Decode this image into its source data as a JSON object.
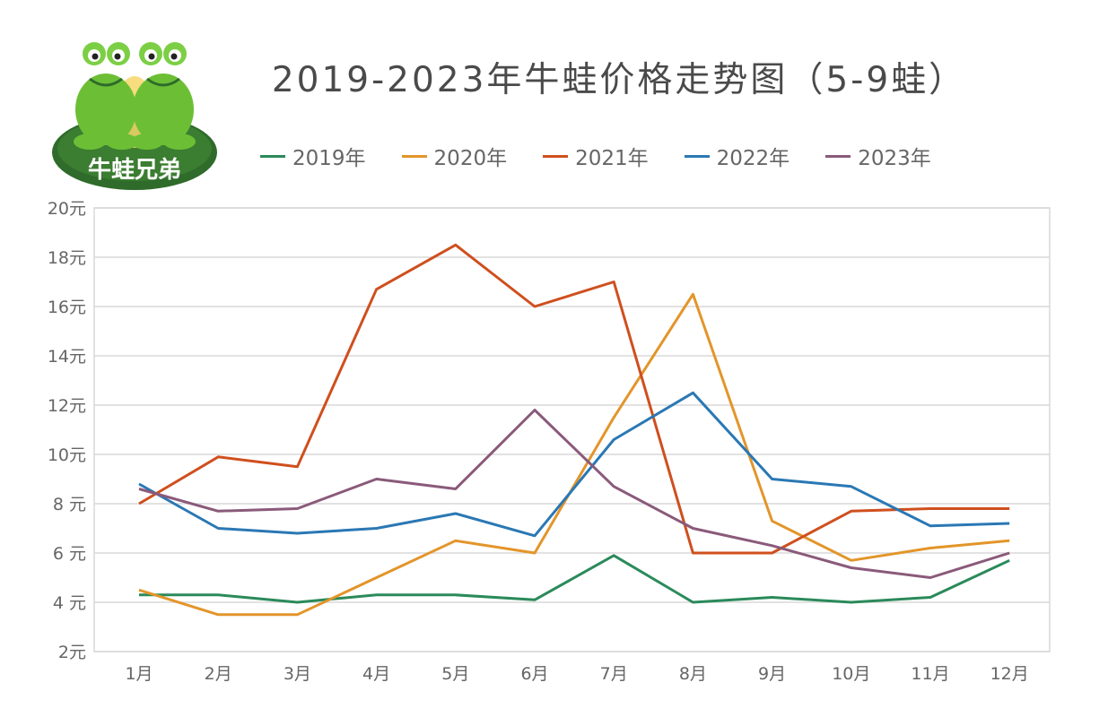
{
  "logo": {
    "text": "牛蛙兄弟"
  },
  "colors": {
    "2019": "#2a8a5a",
    "2020": "#e3952a",
    "2021": "#cf4f1e",
    "2022": "#2a78b4",
    "2023": "#8a5a7a",
    "grid": "#d8d8d8",
    "frog": "#6cbf35",
    "pad": "#2f6b2a"
  },
  "chart_data": {
    "type": "line",
    "title": "2019-2023年牛蛙价格走势图（5-9蛙）",
    "xlabel": "",
    "ylabel": "",
    "categories": [
      "1月",
      "2月",
      "3月",
      "4月",
      "5月",
      "6月",
      "7月",
      "8月",
      "9月",
      "10月",
      "11月",
      "12月"
    ],
    "y_ticks": [
      "2元",
      "4 元",
      "6 元",
      "8 元",
      "10元",
      "12元",
      "14元",
      "16元",
      "18元",
      "20元"
    ],
    "ylim": [
      2,
      20
    ],
    "grid": true,
    "legend_position": "top",
    "series": [
      {
        "name": "2019年",
        "color_key": "2019",
        "values": [
          4.3,
          4.3,
          4.0,
          4.3,
          4.3,
          4.1,
          5.9,
          4.0,
          4.2,
          4.0,
          4.2,
          5.7
        ]
      },
      {
        "name": "2020年",
        "color_key": "2020",
        "values": [
          4.5,
          3.5,
          3.5,
          5.0,
          6.5,
          6.0,
          11.5,
          16.5,
          7.3,
          5.7,
          6.2,
          6.5
        ]
      },
      {
        "name": "2021年",
        "color_key": "2021",
        "values": [
          8.0,
          9.9,
          9.5,
          16.7,
          18.5,
          16.0,
          17.0,
          6.0,
          6.0,
          7.7,
          7.8,
          7.8
        ]
      },
      {
        "name": "2022年",
        "color_key": "2022",
        "values": [
          8.8,
          7.0,
          6.8,
          7.0,
          7.6,
          6.7,
          10.6,
          12.5,
          9.0,
          8.7,
          7.1,
          7.2
        ]
      },
      {
        "name": "2023年",
        "color_key": "2023",
        "values": [
          8.6,
          7.7,
          7.8,
          9.0,
          8.6,
          11.8,
          8.7,
          7.0,
          6.3,
          5.4,
          5.0,
          6.0
        ]
      }
    ]
  }
}
